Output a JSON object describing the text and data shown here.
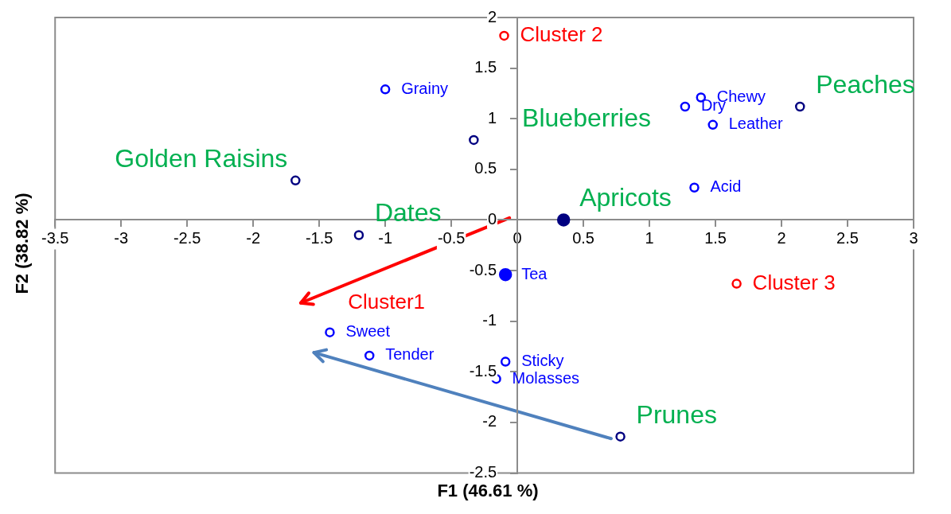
{
  "chart_data": {
    "type": "scatter",
    "xlabel": "F1 (46.61 %)",
    "ylabel": "F2 (38.82 %)",
    "xlim": [
      -3.5,
      3
    ],
    "xticks": [
      -3.5,
      -3,
      -2.5,
      -2,
      -1.5,
      -1,
      -0.5,
      0,
      0.5,
      1,
      1.5,
      2,
      2.5,
      3
    ],
    "ylim": [
      -2.5,
      2
    ],
    "yticks": [
      -2.5,
      -2,
      -1.5,
      -1,
      -0.5,
      0,
      0.5,
      1,
      1.5,
      2
    ],
    "grid": false,
    "marker": "circle",
    "series": [
      {
        "color": "#ff0000",
        "x": [
          -0.1,
          1.66
        ],
        "values": [
          1.82,
          -0.63
        ],
        "value_labels": [
          "Cluster 2",
          "Cluster 3"
        ]
      },
      {
        "color": "#0000ff",
        "x": [
          -1.0,
          1.39,
          1.27,
          1.48,
          1.34,
          -1.42,
          -1.12,
          -0.09,
          -0.16
        ],
        "values": [
          1.29,
          1.21,
          1.12,
          0.94,
          0.32,
          -1.11,
          -1.34,
          -1.4,
          -1.57
        ],
        "value_labels": [
          "Grainy",
          "Chewy",
          "Dry",
          "Leather",
          "Acid",
          "Sweet",
          "Tender",
          "Sticky",
          "Molasses"
        ]
      },
      {
        "color": "#000080",
        "x": [
          -1.68,
          -0.33,
          -1.2,
          2.14,
          0.78
        ],
        "values": [
          0.39,
          0.79,
          -0.15,
          1.12,
          -2.14
        ],
        "value_labels": [
          "Golden Raisins",
          "Blueberries",
          "Dates",
          "Peaches",
          "Prunes"
        ]
      },
      {
        "color": "#0000ff",
        "x": [
          -0.09
        ],
        "values": [
          -0.54
        ],
        "value_labels": [
          "Tea"
        ]
      },
      {
        "color": "#000080",
        "x": [
          0.35
        ],
        "values": [
          0.0
        ],
        "value_labels": [
          "Apricots"
        ]
      }
    ],
    "annotations": [
      "Cluster1"
    ]
  }
}
